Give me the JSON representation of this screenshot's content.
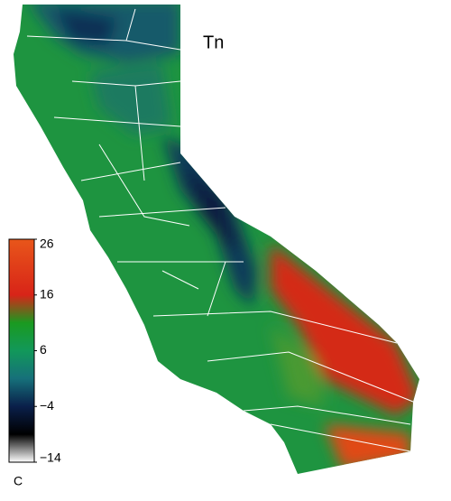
{
  "title": "Tn",
  "colorbar": {
    "range": [
      -14,
      26
    ],
    "ticks": [
      26,
      16,
      6,
      {
        "value": -4,
        "label": "−4"
      },
      {
        "value": -14,
        "label": "−14"
      }
    ],
    "unit": "C",
    "stops": [
      {
        "value": -14,
        "color": "#ffffff"
      },
      {
        "value": -9,
        "color": "#000000"
      },
      {
        "value": -4,
        "color": "#0a1f4a"
      },
      {
        "value": 1,
        "color": "#16707a"
      },
      {
        "value": 6,
        "color": "#12985a"
      },
      {
        "value": 11,
        "color": "#1a9a20"
      },
      {
        "value": 16,
        "color": "#d82418"
      },
      {
        "value": 26,
        "color": "#e8561a"
      }
    ]
  }
}
